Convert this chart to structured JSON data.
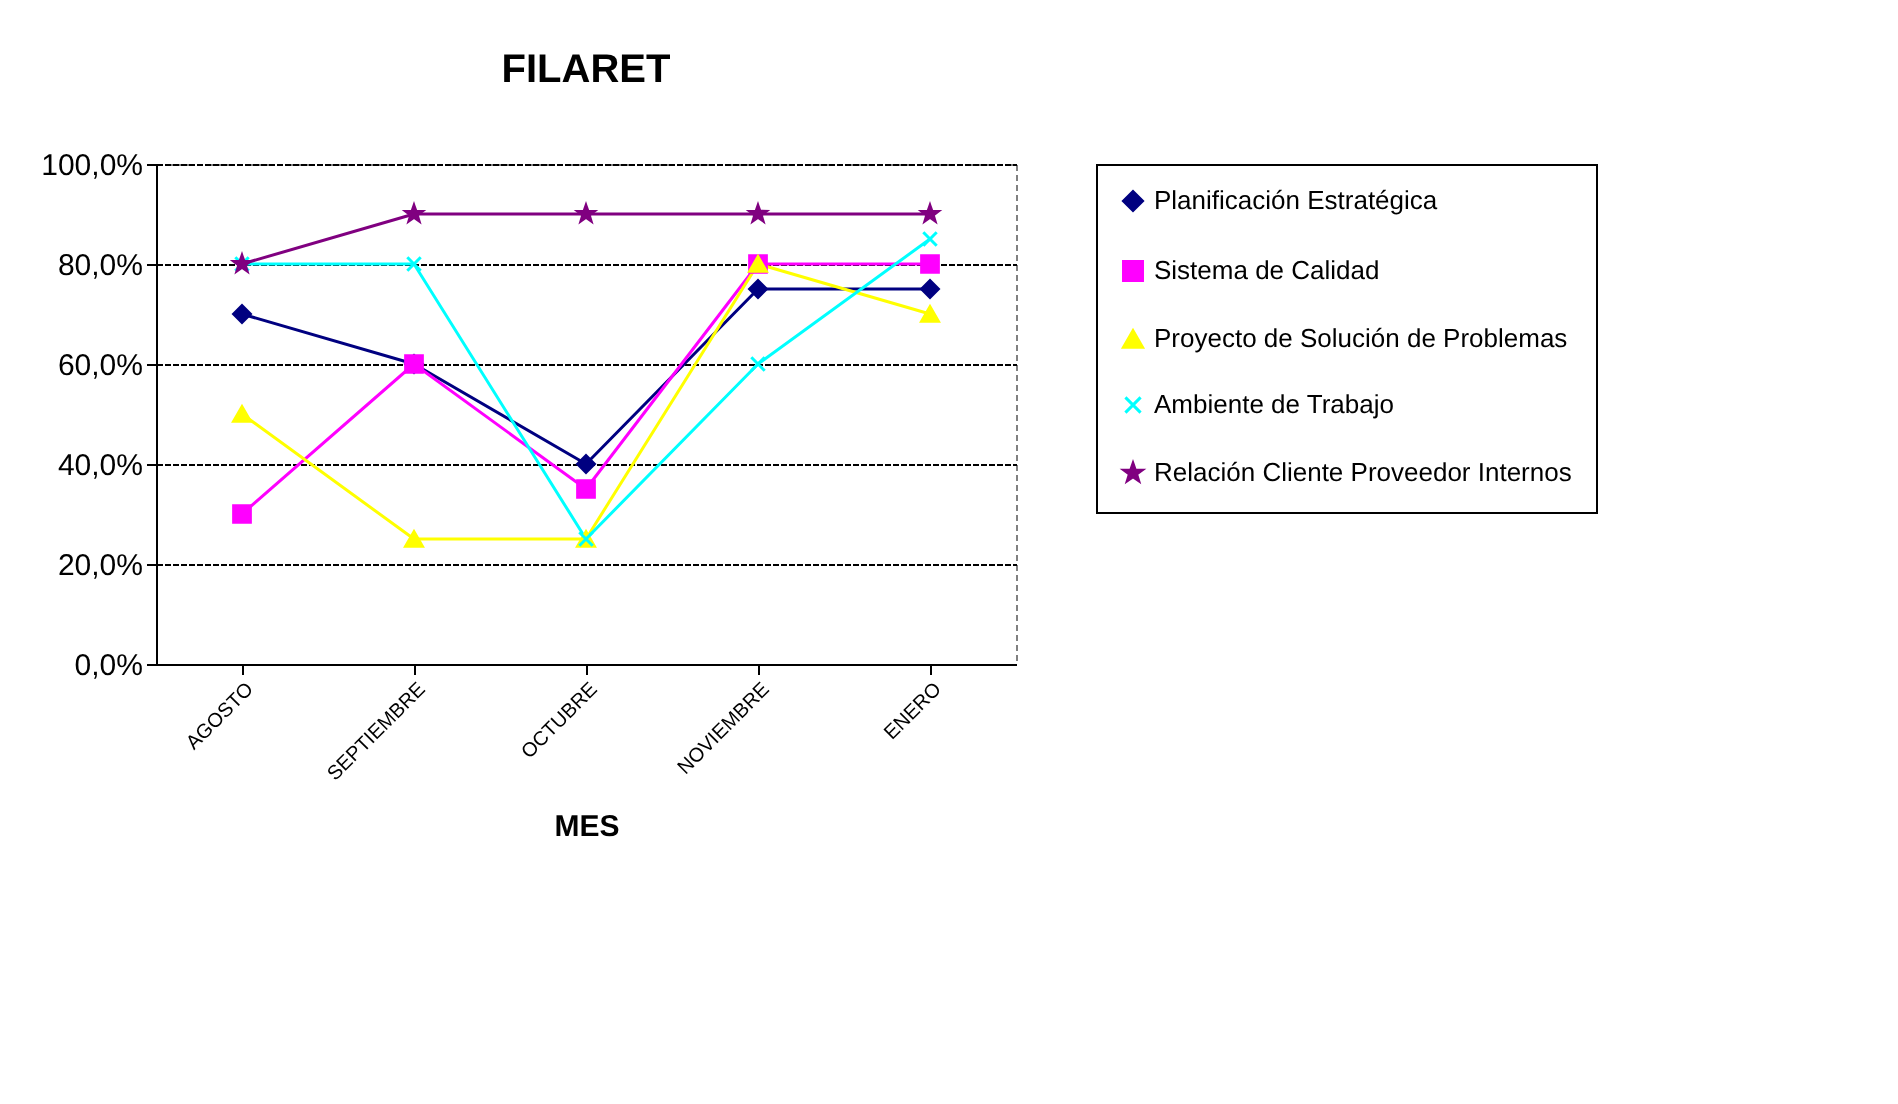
{
  "chart_data": {
    "type": "line",
    "title": "FILARET",
    "xlabel": "MES",
    "categories": [
      "AGOSTO",
      "SEPTIEMBRE",
      "OCTUBRE",
      "NOVIEMBRE",
      "ENERO"
    ],
    "series": [
      {
        "name": "Planificación Estratégica",
        "color": "#000080",
        "marker": "diamond",
        "values": [
          70,
          60,
          40,
          75,
          75
        ]
      },
      {
        "name": "Sistema de Calidad",
        "color": "#ff00ff",
        "marker": "square",
        "values": [
          30,
          60,
          35,
          80,
          80
        ]
      },
      {
        "name": "Proyecto de Solución de Problemas",
        "color": "#ffff00",
        "marker": "triangle",
        "values": [
          50,
          25,
          25,
          80,
          70
        ]
      },
      {
        "name": "Ambiente de Trabajo",
        "color": "#00ffff",
        "marker": "cross",
        "values": [
          80,
          80,
          25,
          60,
          85
        ]
      },
      {
        "name": "Relación Cliente Proveedor Internos",
        "color": "#800080",
        "marker": "star",
        "values": [
          80,
          90,
          90,
          90,
          90
        ]
      }
    ],
    "ylim": [
      0,
      100
    ],
    "yticks": [
      {
        "value": 0,
        "label": "0,0%"
      },
      {
        "value": 20,
        "label": "20,0%"
      },
      {
        "value": 40,
        "label": "40,0%"
      },
      {
        "value": 60,
        "label": "60,0%"
      },
      {
        "value": 80,
        "label": "80,0%"
      },
      {
        "value": 100,
        "label": "100,0%"
      }
    ],
    "grid": "y",
    "legend": "right",
    "line_style": "solid"
  }
}
